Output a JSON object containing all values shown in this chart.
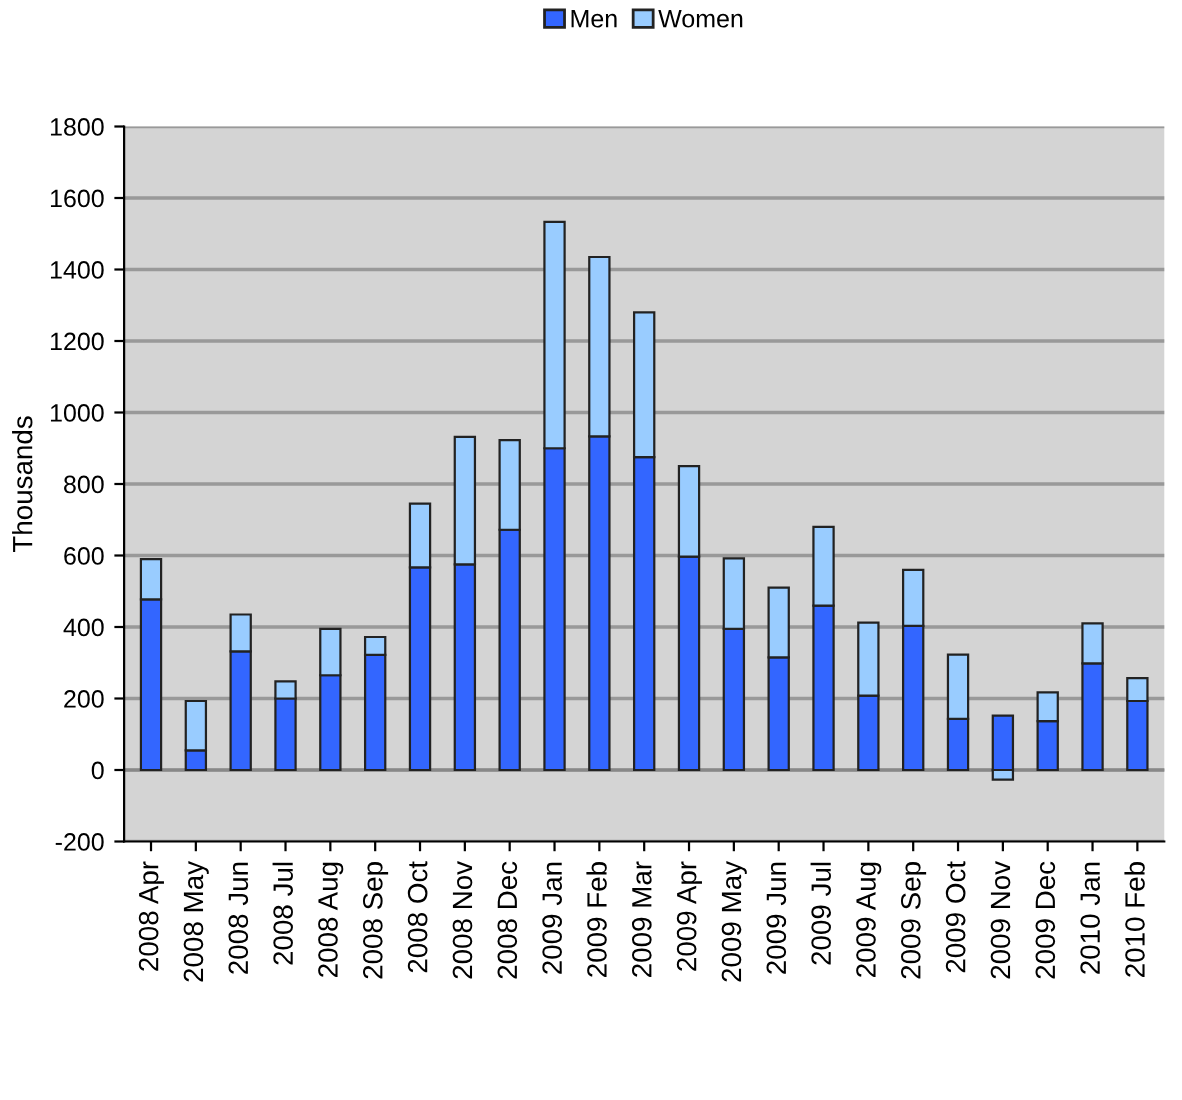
{
  "chart_data": {
    "type": "bar",
    "stacked": true,
    "ylabel": "Thousands",
    "categories": [
      "2008 Apr",
      "2008 May",
      "2008 Jun",
      "2008 Jul",
      "2008 Aug",
      "2008 Sep",
      "2008 Oct",
      "2008 Nov",
      "2008 Dec",
      "2009 Jan",
      "2009 Feb",
      "2009 Mar",
      "2009 Apr",
      "2009 May",
      "2009 Jun",
      "2009 Jul",
      "2009 Aug",
      "2009 Sep",
      "2009 Oct",
      "2009 Nov",
      "2009 Dec",
      "2010 Jan",
      "2010 Feb"
    ],
    "series": [
      {
        "name": "Men",
        "color": "#3366ff",
        "values": [
          477,
          55,
          332,
          200,
          265,
          322,
          567,
          575,
          672,
          900,
          933,
          875,
          597,
          395,
          315,
          460,
          208,
          403,
          143,
          152,
          137,
          298,
          193
        ]
      },
      {
        "name": "Women",
        "color": "#99ccff",
        "values": [
          113,
          138,
          103,
          48,
          130,
          50,
          178,
          357,
          251,
          633,
          502,
          405,
          253,
          197,
          195,
          220,
          204,
          157,
          180,
          -27,
          80,
          112,
          64
        ]
      }
    ],
    "ylim": [
      -200,
      1800
    ],
    "yticks": [
      -200,
      0,
      200,
      400,
      600,
      800,
      1000,
      1200,
      1400,
      1600,
      1800
    ],
    "grid": "y",
    "legend": "top"
  }
}
